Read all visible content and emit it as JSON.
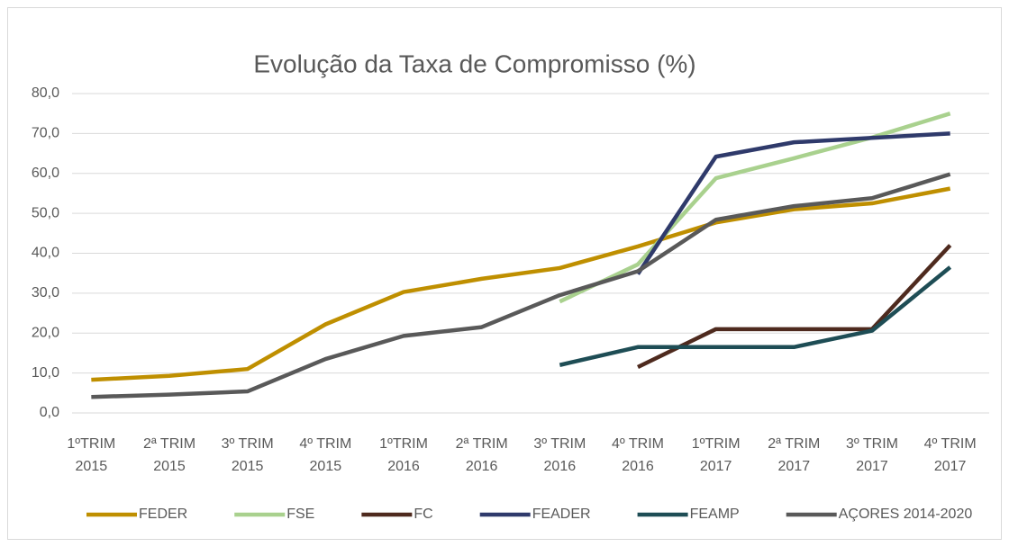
{
  "chart_data": {
    "type": "line",
    "title": "Evolução da Taxa de Compromisso (%)",
    "categories": [
      [
        "1ºTRIM",
        "2015"
      ],
      [
        "2ª TRIM",
        "2015"
      ],
      [
        "3º TRIM",
        "2015"
      ],
      [
        "4º TRIM",
        "2015"
      ],
      [
        "1ºTRIM",
        "2016"
      ],
      [
        "2ª TRIM",
        "2016"
      ],
      [
        "3º TRIM",
        "2016"
      ],
      [
        "4º TRIM",
        "2016"
      ],
      [
        "1ºTRIM",
        "2017"
      ],
      [
        "2ª TRIM",
        "2017"
      ],
      [
        "3º TRIM",
        "2017"
      ],
      [
        "4º TRIM",
        "2017"
      ]
    ],
    "series": [
      {
        "name": "FEDER",
        "color": "#bf8f00",
        "values": [
          8.3,
          9.3,
          11.0,
          22.2,
          30.3,
          33.6,
          36.3,
          41.7,
          47.7,
          51.0,
          52.5,
          56.2
        ]
      },
      {
        "name": "FSE",
        "color": "#a9d18e",
        "values": [
          null,
          null,
          null,
          null,
          null,
          null,
          27.9,
          37.2,
          58.8,
          63.8,
          69.0,
          75.0
        ]
      },
      {
        "name": "FC",
        "color": "#4e2a1e",
        "values": [
          null,
          null,
          null,
          null,
          null,
          null,
          null,
          11.5,
          21.0,
          21.0,
          21.0,
          42.0
        ]
      },
      {
        "name": "FEADER",
        "color": "#2f3a6b",
        "values": [
          null,
          null,
          null,
          null,
          null,
          null,
          null,
          34.8,
          64.2,
          67.8,
          68.9,
          70.0
        ]
      },
      {
        "name": "FEAMP",
        "color": "#1e4d55",
        "values": [
          null,
          null,
          null,
          null,
          null,
          null,
          12.0,
          16.5,
          16.5,
          16.5,
          20.6,
          36.5
        ]
      },
      {
        "name": "AÇORES 2014-2020",
        "color": "#595959",
        "values": [
          4.0,
          4.6,
          5.4,
          13.5,
          19.3,
          21.5,
          29.5,
          35.5,
          48.4,
          51.8,
          53.8,
          59.8
        ]
      }
    ],
    "ylim": [
      0,
      80
    ],
    "yticks": [
      {
        "value": 0,
        "label": "0,0"
      },
      {
        "value": 10,
        "label": "10,0"
      },
      {
        "value": 20,
        "label": "20,0"
      },
      {
        "value": 30,
        "label": "30,0"
      },
      {
        "value": 40,
        "label": "40,0"
      },
      {
        "value": 50,
        "label": "50,0"
      },
      {
        "value": 60,
        "label": "60,0"
      },
      {
        "value": 70,
        "label": "70,0"
      },
      {
        "value": 80,
        "label": "80,0"
      }
    ],
    "grid": true,
    "legend": "bottom"
  }
}
